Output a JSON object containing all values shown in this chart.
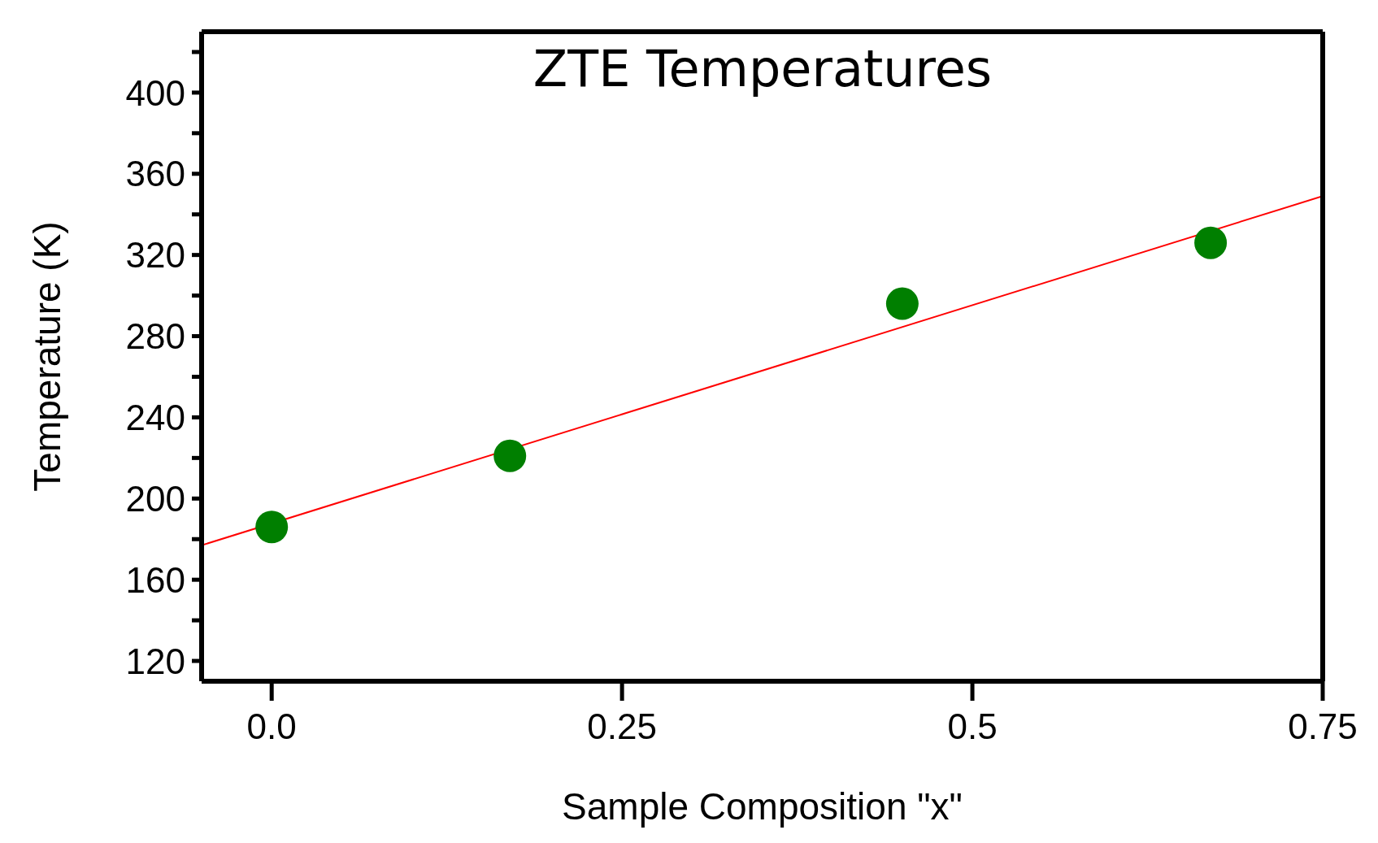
{
  "chart_data": {
    "type": "scatter",
    "title": "ZTE Temperatures",
    "xlabel": "Sample Composition \"x\"",
    "ylabel": "Temperature (K)",
    "xlim": [
      -0.05,
      0.75
    ],
    "xticks": [
      {
        "value": 0,
        "label": "0.0"
      },
      0.25,
      0.5,
      0.75
    ],
    "ylim": [
      110,
      430
    ],
    "yticks": [
      120,
      {
        "value": 140,
        "label": null
      },
      160,
      {
        "value": 180,
        "label": null
      },
      200,
      {
        "value": 220,
        "label": null
      },
      240,
      {
        "value": 260,
        "label": null
      },
      280,
      {
        "value": 300,
        "label": null
      },
      320,
      {
        "value": 340,
        "label": null
      },
      360,
      {
        "value": 380,
        "label": null
      },
      400,
      {
        "value": 420,
        "label": null
      }
    ],
    "marker": "circle",
    "series": [
      {
        "color": "#007f00",
        "x": [
          0,
          0.17,
          0.45,
          0.67
        ],
        "values": [
          186,
          221,
          296,
          326
        ]
      },
      {
        "type": "line",
        "color": "#ff0000",
        "x": [
          -0.05,
          0.75
        ],
        "values": [
          177,
          349
        ],
        "marker": "none"
      }
    ]
  }
}
